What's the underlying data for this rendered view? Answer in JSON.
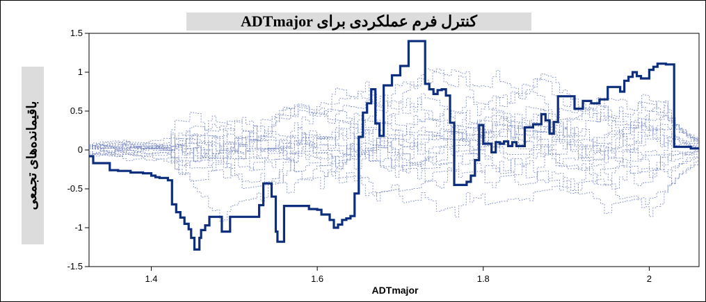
{
  "chart_data": {
    "type": "line",
    "title": "کنترل فرم عملکردی برای ADTmajor",
    "xlabel": "ADTmajor",
    "ylabel": "باقیمانده‌های تجمعی",
    "xlim": [
      1.325,
      2.06
    ],
    "ylim": [
      -1.5,
      1.5
    ],
    "x_ticks": [
      1.4,
      1.6,
      1.8,
      2
    ],
    "x_tick_labels": [
      "1.4",
      "1.6",
      "1.8",
      "2"
    ],
    "y_ticks": [
      1.5,
      1,
      0.5,
      0,
      -0.5,
      -1,
      -1.5
    ],
    "y_tick_labels": [
      "1.5",
      "1",
      "0.5",
      "0",
      "-0.5",
      "-1",
      "-1.5"
    ],
    "grid": false,
    "colors": {
      "observed": "#0c2e7c",
      "simulated": "#8090c6"
    },
    "series": [
      {
        "role": "observed",
        "x": [
          1.325,
          1.33,
          1.335,
          1.35,
          1.36,
          1.375,
          1.39,
          1.4,
          1.405,
          1.41,
          1.42,
          1.425,
          1.43,
          1.435,
          1.44,
          1.445,
          1.448,
          1.452,
          1.455,
          1.458,
          1.46,
          1.465,
          1.47,
          1.48,
          1.485,
          1.495,
          1.5,
          1.51,
          1.52,
          1.53,
          1.535,
          1.545,
          1.55,
          1.552,
          1.56,
          1.565,
          1.57,
          1.58,
          1.59,
          1.6,
          1.605,
          1.61,
          1.615,
          1.62,
          1.625,
          1.63,
          1.635,
          1.64,
          1.645,
          1.65,
          1.655,
          1.66,
          1.665,
          1.67,
          1.675,
          1.68,
          1.69,
          1.7,
          1.71,
          1.725,
          1.73,
          1.735,
          1.74,
          1.745,
          1.75,
          1.755,
          1.76,
          1.765,
          1.77,
          1.78,
          1.785,
          1.79,
          1.795,
          1.8,
          1.81,
          1.815,
          1.82,
          1.825,
          1.83,
          1.835,
          1.84,
          1.85,
          1.86,
          1.87,
          1.875,
          1.88,
          1.885,
          1.89,
          1.9,
          1.91,
          1.92,
          1.93,
          1.94,
          1.95,
          1.96,
          1.965,
          1.97,
          1.975,
          1.98,
          1.985,
          1.99,
          2.0,
          2.005,
          2.01,
          2.02,
          2.03,
          2.04,
          2.05,
          2.06
        ],
        "y": [
          -0.08,
          -0.17,
          -0.17,
          -0.26,
          -0.27,
          -0.29,
          -0.3,
          -0.33,
          -0.35,
          -0.36,
          -0.39,
          -0.7,
          -0.8,
          -0.87,
          -0.95,
          -1.02,
          -1.13,
          -1.28,
          -1.28,
          -1.13,
          -1.03,
          -0.97,
          -0.86,
          -0.86,
          -1.05,
          -0.86,
          -0.86,
          -0.86,
          -0.86,
          -0.71,
          -0.43,
          -0.6,
          -1.05,
          -1.18,
          -0.72,
          -0.72,
          -0.72,
          -0.72,
          -0.76,
          -0.77,
          -0.83,
          -0.83,
          -0.9,
          -1.0,
          -0.96,
          -0.9,
          -0.88,
          -0.85,
          -0.56,
          0.17,
          0.48,
          0.6,
          0.78,
          0.34,
          0.18,
          0.83,
          0.96,
          1.08,
          1.4,
          1.4,
          0.85,
          0.78,
          0.72,
          0.77,
          0.78,
          0.7,
          0.35,
          -0.45,
          -0.45,
          -0.41,
          -0.33,
          -0.13,
          0.32,
          0.08,
          -0.03,
          0.1,
          0.08,
          0.11,
          0.05,
          0.1,
          0.05,
          0.29,
          0.33,
          0.46,
          0.38,
          0.21,
          0.36,
          0.69,
          0.69,
          0.53,
          0.63,
          0.6,
          0.65,
          0.81,
          0.81,
          0.75,
          0.89,
          0.94,
          1.0,
          0.95,
          0.92,
          1.03,
          1.07,
          1.11,
          1.1,
          0.04,
          0.04,
          0.02,
          0.02
        ]
      }
    ],
    "simulated_paths_count": 20
  }
}
